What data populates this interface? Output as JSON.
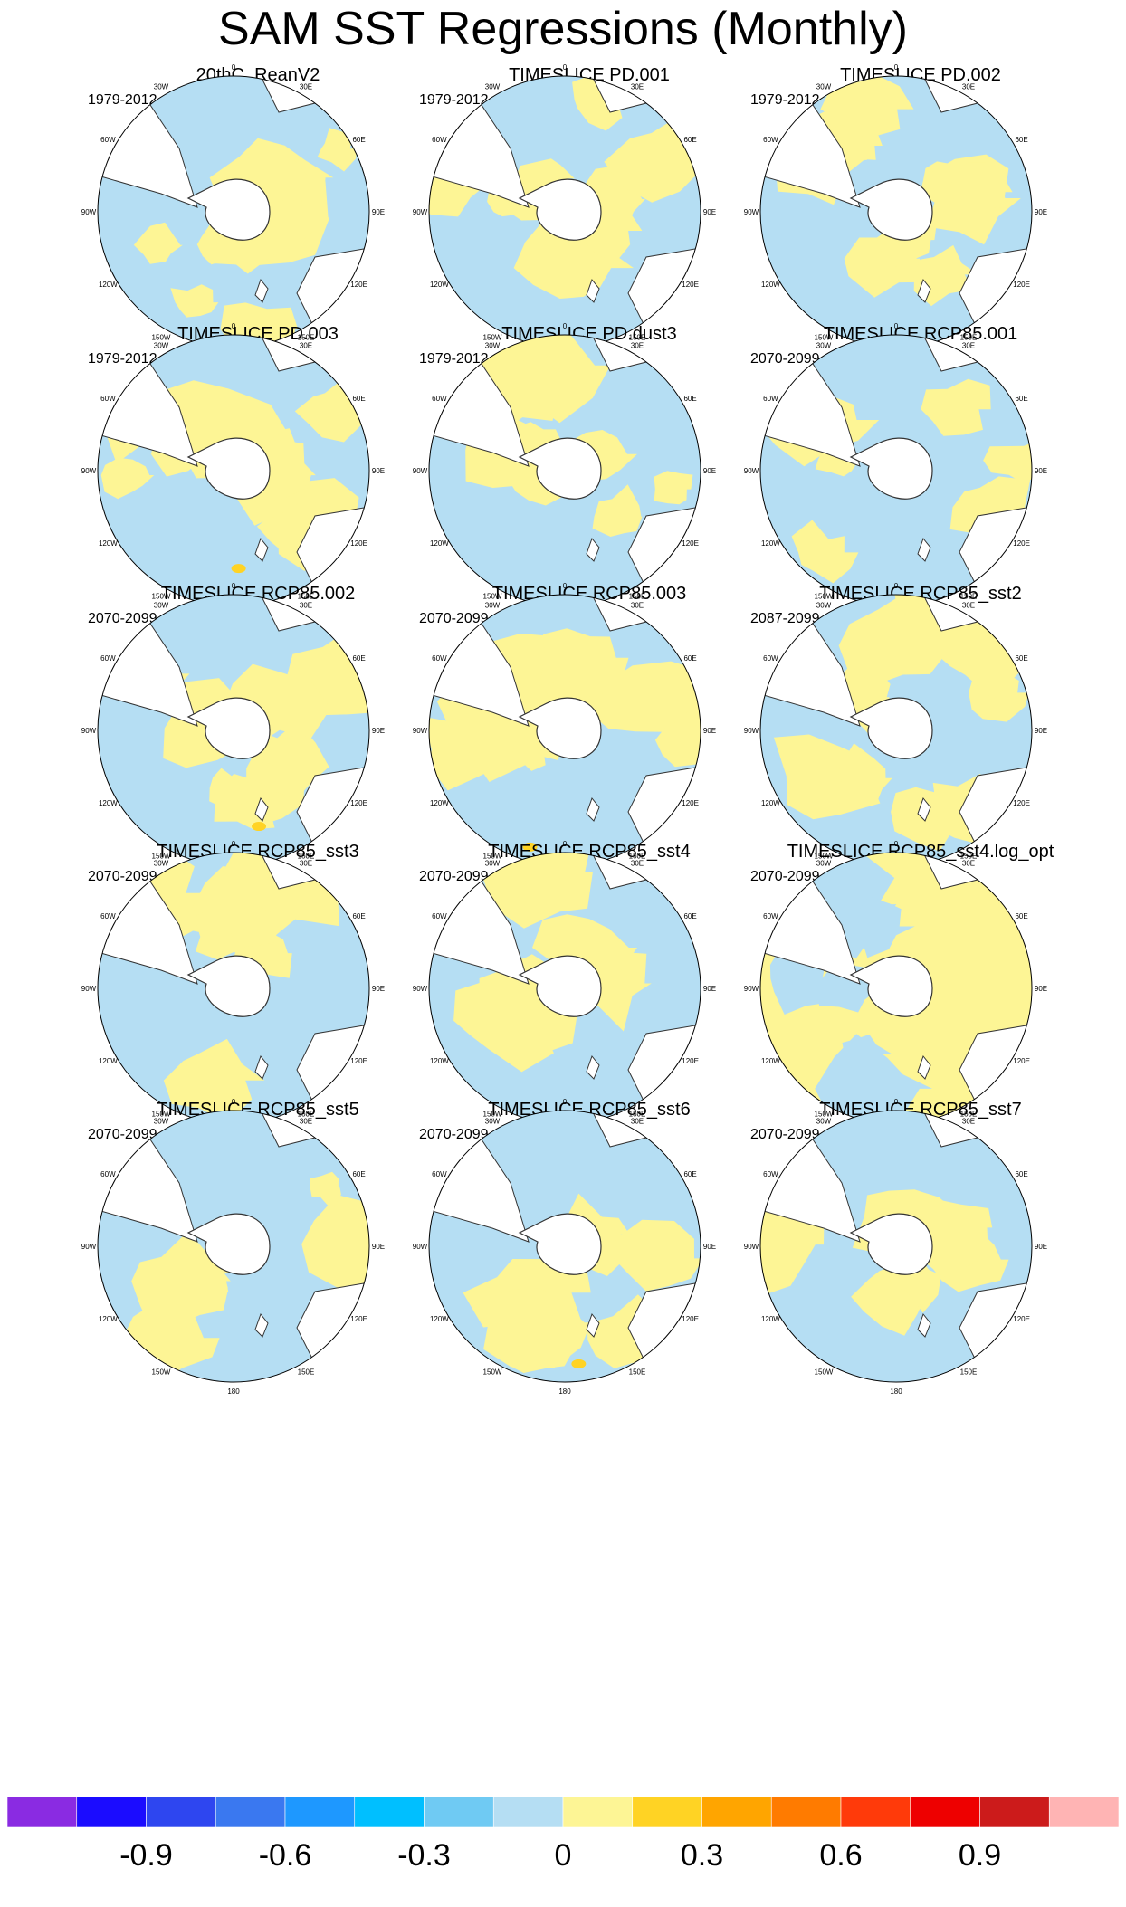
{
  "figure": {
    "title": "SAM SST Regressions (Monthly)"
  },
  "chart_data": {
    "type": "heatmap",
    "title": "SAM SST Regressions (Monthly)",
    "projection": "south-polar stereographic",
    "longitude_labels": [
      "0",
      "30E",
      "60E",
      "90E",
      "120E",
      "150E",
      "180",
      "150W",
      "120W",
      "90W",
      "60W",
      "30W"
    ],
    "panels": [
      {
        "title": "20thC_ReanV2",
        "period": "1979-2012",
        "dominant_sign": "mixed",
        "seed": 3,
        "extra": []
      },
      {
        "title": "TIMESLICE PD.001",
        "period": "1979-2012",
        "dominant_sign": "mixed",
        "seed": 7,
        "extra": []
      },
      {
        "title": "TIMESLICE PD.002",
        "period": "1979-2012",
        "dominant_sign": "mixed",
        "seed": 11,
        "extra": []
      },
      {
        "title": "TIMESLICE PD.003",
        "period": "1979-2012",
        "dominant_sign": "mixed",
        "seed": 13,
        "extra": [
          "weak positive spots near 150W"
        ]
      },
      {
        "title": "TIMESLICE PD.dust3",
        "period": "1979-2012",
        "dominant_sign": "mixed",
        "seed": 17,
        "extra": []
      },
      {
        "title": "TIMESLICE RCP85.001",
        "period": "2070-2099",
        "dominant_sign": "mostly negative",
        "seed": 19,
        "extra": []
      },
      {
        "title": "TIMESLICE RCP85.002",
        "period": "2070-2099",
        "dominant_sign": "mixed",
        "seed": 23,
        "extra": [
          "0.3 spot near 150W"
        ]
      },
      {
        "title": "TIMESLICE RCP85.003",
        "period": "2070-2099",
        "dominant_sign": "mixed",
        "seed": 29,
        "extra": [
          "0.3 spot near 180"
        ]
      },
      {
        "title": "TIMESLICE RCP85_sst2",
        "period": "2087-2099",
        "dominant_sign": "mixed",
        "seed": 31,
        "extra": []
      },
      {
        "title": "TIMESLICE RCP85_sst3",
        "period": "2070-2099",
        "dominant_sign": "mixed",
        "seed": 37,
        "extra": []
      },
      {
        "title": "TIMESLICE RCP85_sst4",
        "period": "2070-2099",
        "dominant_sign": "mixed",
        "seed": 41,
        "extra": []
      },
      {
        "title": "TIMESLICE RCP85_sst4.log_opt",
        "period": "2070-2099",
        "dominant_sign": "mostly positive",
        "seed": 43,
        "extra": []
      },
      {
        "title": "TIMESLICE RCP85_sst5",
        "period": "2070-2099",
        "dominant_sign": "mostly negative",
        "seed": 47,
        "extra": []
      },
      {
        "title": "TIMESLICE RCP85_sst6",
        "period": "2070-2099",
        "dominant_sign": "mixed",
        "seed": 53,
        "extra": [
          "0.3 spot near 120E"
        ]
      },
      {
        "title": "TIMESLICE RCP85_sst7",
        "period": "2070-2099",
        "dominant_sign": "mostly negative",
        "seed": 59,
        "extra": []
      }
    ],
    "colorbar": {
      "levels": [
        "-0.9",
        "-0.6",
        "-0.3",
        "0",
        "0.3",
        "0.6",
        "0.9"
      ],
      "level_values": [
        -0.9,
        -0.6,
        -0.3,
        0,
        0.3,
        0.6,
        0.9
      ],
      "colors": [
        "#8a2be2",
        "#1b0cff",
        "#2e46f0",
        "#3a78f0",
        "#1e98ff",
        "#00bfff",
        "#6fcaf3",
        "#b5def3",
        "#fdf595",
        "#ffd324",
        "#ffa500",
        "#ff7b00",
        "#ff3a0a",
        "#ee0000",
        "#cc1b1b",
        "#ffb4b4"
      ]
    },
    "colors": {
      "land": "#ffffff",
      "negative_fill": "#b5def3",
      "positive_fill": "#fdf595",
      "positive_strong": "#ffd324"
    }
  }
}
